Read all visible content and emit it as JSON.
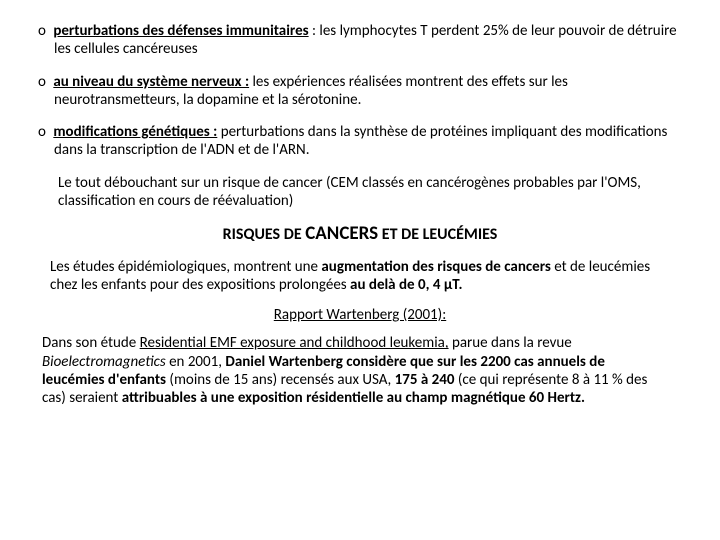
{
  "bullets": [
    {
      "marker": "o",
      "term": "perturbations des défenses immunitaires",
      "text": " : les lymphocytes T perdent 25% de leur pouvoir de détruire les cellules cancéreuses"
    },
    {
      "marker": "o",
      "term": "au niveau du système nerveux :",
      "text": " les expériences réalisées montrent des effets sur les neurotransmetteurs, la dopamine et la sérotonine."
    },
    {
      "marker": "o",
      "term": "modifications génétiques :",
      "text": " perturbations dans la synthèse de protéines impliquant des modifications dans la transcription de l'ADN et de l'ARN."
    }
  ],
  "note": "Le tout débouchant sur un risque de cancer (CEM classés en cancérogènes probables par l'OMS, classification en cours de réévaluation)",
  "section": {
    "pre": "RISQUES DE ",
    "big": "CANCERS",
    "post": " ET DE LEUCÉMIES"
  },
  "para": {
    "t1": "Les études épidémiologiques, montrent une ",
    "b1": "augmentation des risques de cancers",
    "t2": " et de leucémies chez les enfants pour des expositions prolongées ",
    "b2": "au delà de 0, 4 µT."
  },
  "report": "Rapport Wartenberg (2001):",
  "p2": {
    "t1": "Dans son étude ",
    "u1": "Residential EMF exposure and childhood leukemia,",
    "t2": " parue dans la revue ",
    "i1": "Bioelectromagnetics",
    "t3": " en 2001, ",
    "b1": "Daniel Wartenberg considère que sur les 2200 cas annuels de leucémies d'enfants",
    "t4": " (moins de 15 ans) recensés aux USA, ",
    "b2": "175 à 240",
    "t5": " (ce qui représente 8 à 11 % des cas) seraient ",
    "b3": "attribuables à une exposition résidentielle au champ magnétique 60 Hertz."
  }
}
